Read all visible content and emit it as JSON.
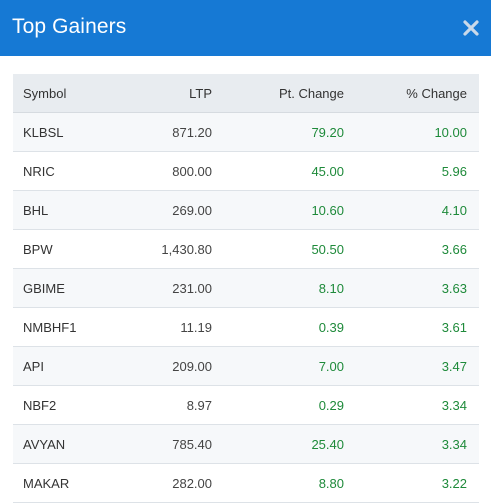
{
  "header": {
    "title": "Top Gainers",
    "close_icon": "close-icon",
    "background": "#1679d4"
  },
  "table": {
    "columns": [
      "Symbol",
      "LTP",
      "Pt. Change",
      "% Change"
    ],
    "positive_color": "#1e8a3a",
    "rows": [
      {
        "symbol": "KLBSL",
        "ltp": "871.20",
        "pt_change": "79.20",
        "pct_change": "10.00"
      },
      {
        "symbol": "NRIC",
        "ltp": "800.00",
        "pt_change": "45.00",
        "pct_change": "5.96"
      },
      {
        "symbol": "BHL",
        "ltp": "269.00",
        "pt_change": "10.60",
        "pct_change": "4.10"
      },
      {
        "symbol": "BPW",
        "ltp": "1,430.80",
        "pt_change": "50.50",
        "pct_change": "3.66"
      },
      {
        "symbol": "GBIME",
        "ltp": "231.00",
        "pt_change": "8.10",
        "pct_change": "3.63"
      },
      {
        "symbol": "NMBHF1",
        "ltp": "11.19",
        "pt_change": "0.39",
        "pct_change": "3.61"
      },
      {
        "symbol": "API",
        "ltp": "209.00",
        "pt_change": "7.00",
        "pct_change": "3.47"
      },
      {
        "symbol": "NBF2",
        "ltp": "8.97",
        "pt_change": "0.29",
        "pct_change": "3.34"
      },
      {
        "symbol": "AVYAN",
        "ltp": "785.40",
        "pt_change": "25.40",
        "pct_change": "3.34"
      },
      {
        "symbol": "MAKAR",
        "ltp": "282.00",
        "pt_change": "8.80",
        "pct_change": "3.22"
      }
    ]
  }
}
